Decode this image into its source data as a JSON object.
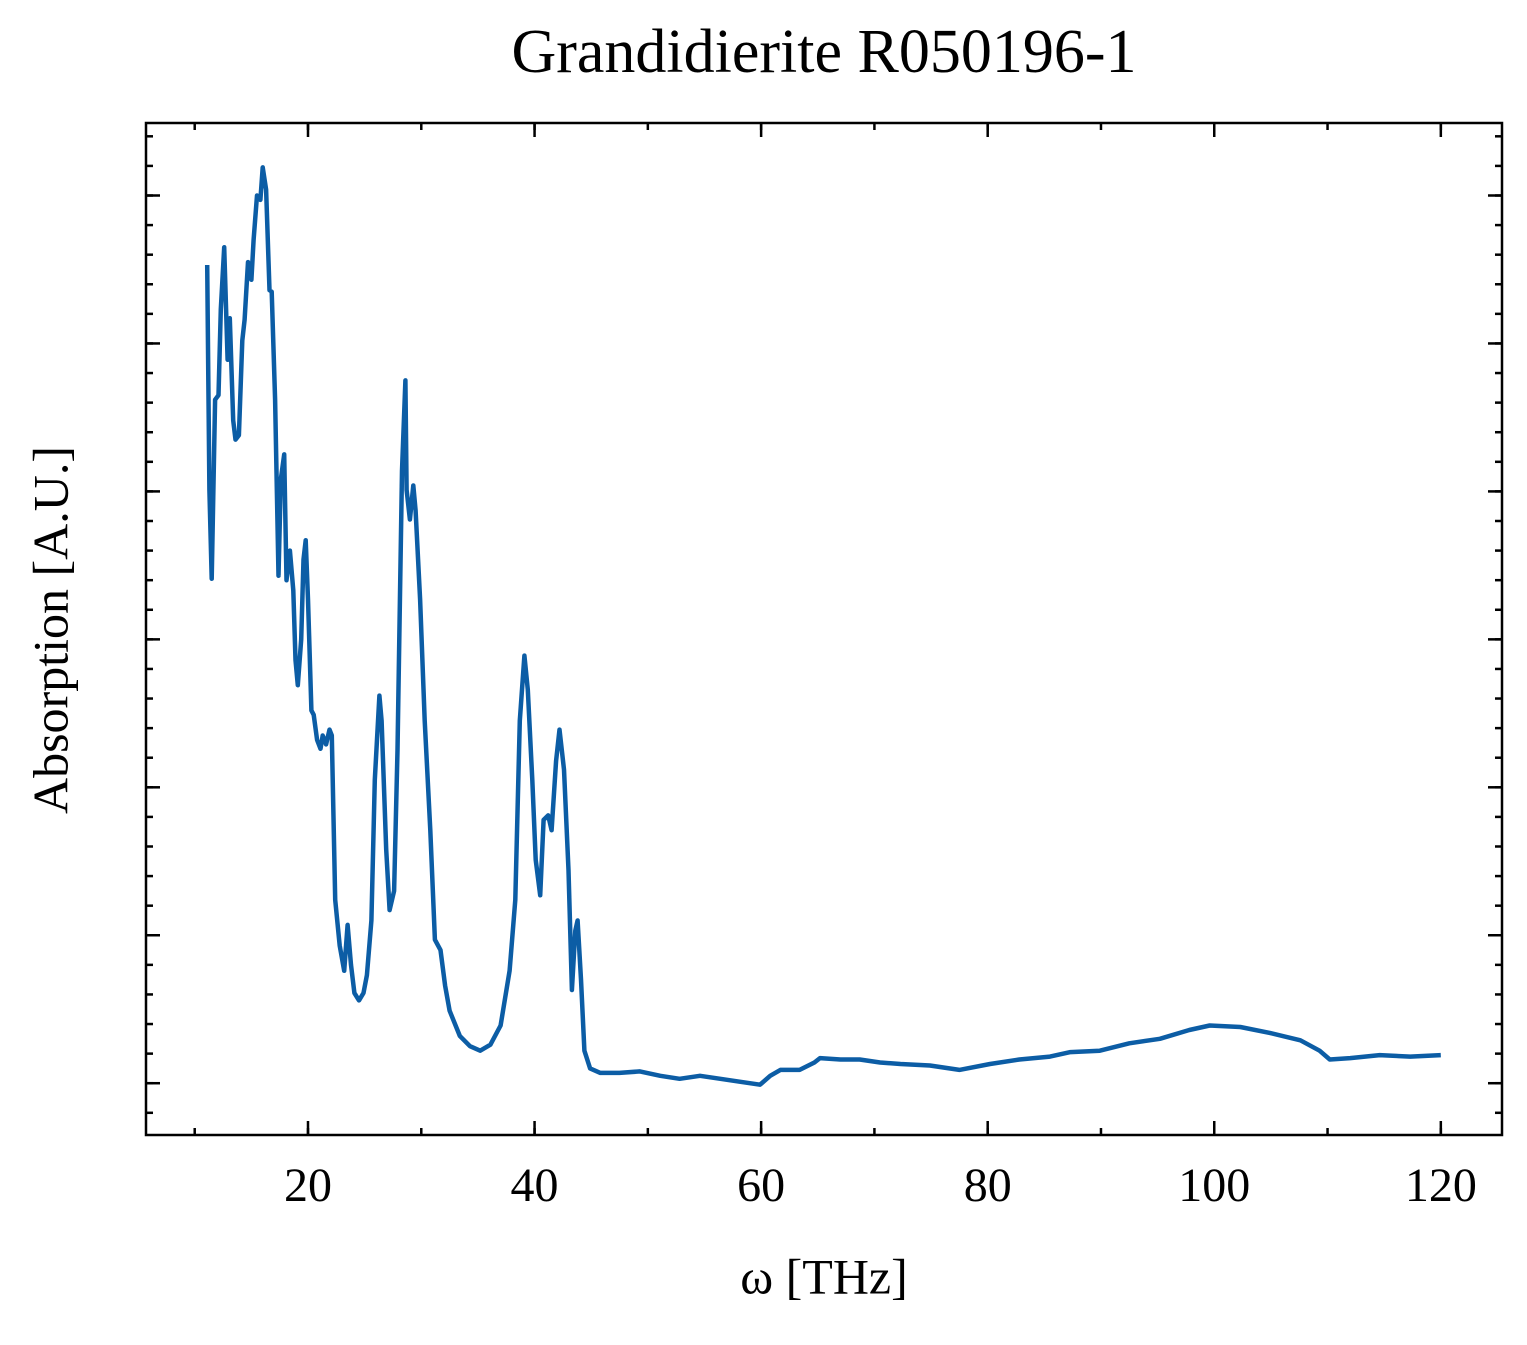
{
  "chart_data": {
    "type": "line",
    "title": "Grandidierite R050196-1",
    "xlabel": "ω [THz]",
    "ylabel": "Absorption [A.U.]",
    "color": "#0c5da5",
    "xlim": [
      5.7,
      125.4
    ],
    "xticks": [
      20,
      40,
      60,
      80,
      100,
      120
    ],
    "ylim": [
      -0.35,
      6.49
    ],
    "yticks": [
      0,
      1,
      2,
      3,
      4,
      5,
      6
    ],
    "x": [
      11.1,
      11.3,
      11.5,
      11.8,
      12.1,
      12.3,
      12.6,
      12.9,
      13.1,
      13.4,
      13.6,
      13.9,
      14.2,
      14.4,
      14.7,
      15.0,
      15.2,
      15.5,
      15.8,
      16.0,
      16.3,
      16.6,
      16.8,
      17.1,
      17.4,
      17.6,
      17.9,
      18.1,
      18.4,
      18.7,
      18.9,
      19.1,
      19.4,
      19.6,
      19.8,
      20.0,
      20.3,
      20.5,
      20.8,
      21.1,
      21.3,
      21.6,
      21.9,
      22.1,
      22.4,
      22.8,
      23.2,
      23.5,
      23.8,
      24.1,
      24.5,
      24.9,
      25.2,
      25.6,
      25.9,
      26.3,
      26.5,
      26.9,
      27.2,
      27.6,
      27.9,
      28.3,
      28.6,
      28.7,
      29.0,
      29.3,
      29.5,
      29.9,
      30.3,
      30.8,
      31.2,
      31.7,
      32.1,
      32.5,
      33.4,
      34.3,
      35.2,
      36.1,
      37.0,
      37.8,
      38.3,
      38.7,
      39.1,
      39.4,
      39.8,
      40.1,
      40.5,
      40.8,
      41.2,
      41.5,
      41.9,
      42.2,
      42.6,
      43.0,
      43.3,
      43.6,
      43.8,
      44.1,
      44.4,
      44.9,
      45.8,
      47.5,
      49.3,
      51.1,
      52.8,
      54.6,
      56.4,
      58.1,
      59.9,
      60.8,
      61.7,
      63.4,
      64.7,
      65.2,
      67.0,
      68.7,
      70.5,
      72.3,
      74.9,
      77.5,
      80.2,
      82.8,
      85.5,
      87.3,
      89.9,
      92.5,
      95.2,
      97.8,
      99.6,
      102.3,
      104.9,
      107.6,
      109.3,
      110.2,
      112.0,
      114.6,
      117.3,
      120.0
    ],
    "values": [
      5.53,
      4.01,
      3.41,
      4.62,
      4.65,
      5.23,
      5.65,
      4.89,
      5.17,
      4.48,
      4.35,
      4.38,
      5.02,
      5.16,
      5.55,
      5.43,
      5.7,
      6.0,
      5.97,
      6.19,
      6.04,
      5.36,
      5.35,
      4.62,
      3.43,
      4.08,
      4.25,
      3.4,
      3.6,
      3.33,
      2.86,
      2.69,
      3.0,
      3.54,
      3.67,
      3.27,
      2.52,
      2.49,
      2.32,
      2.26,
      2.35,
      2.29,
      2.39,
      2.35,
      1.24,
      0.93,
      0.76,
      1.07,
      0.8,
      0.61,
      0.56,
      0.61,
      0.73,
      1.1,
      2.05,
      2.62,
      2.45,
      1.58,
      1.17,
      1.3,
      2.25,
      4.14,
      4.75,
      4.01,
      3.81,
      4.04,
      3.87,
      3.27,
      2.45,
      1.71,
      0.97,
      0.9,
      0.66,
      0.49,
      0.32,
      0.25,
      0.22,
      0.26,
      0.39,
      0.76,
      1.24,
      2.45,
      2.89,
      2.66,
      2.05,
      1.51,
      1.27,
      1.78,
      1.81,
      1.71,
      2.18,
      2.39,
      2.12,
      1.44,
      0.63,
      1.03,
      1.1,
      0.7,
      0.22,
      0.1,
      0.07,
      0.07,
      0.08,
      0.05,
      0.03,
      0.05,
      0.03,
      0.01,
      -0.01,
      0.05,
      0.09,
      0.09,
      0.14,
      0.17,
      0.16,
      0.16,
      0.14,
      0.13,
      0.12,
      0.09,
      0.13,
      0.16,
      0.18,
      0.21,
      0.22,
      0.27,
      0.3,
      0.36,
      0.39,
      0.38,
      0.34,
      0.29,
      0.22,
      0.16,
      0.17,
      0.19,
      0.18,
      0.19
    ]
  }
}
